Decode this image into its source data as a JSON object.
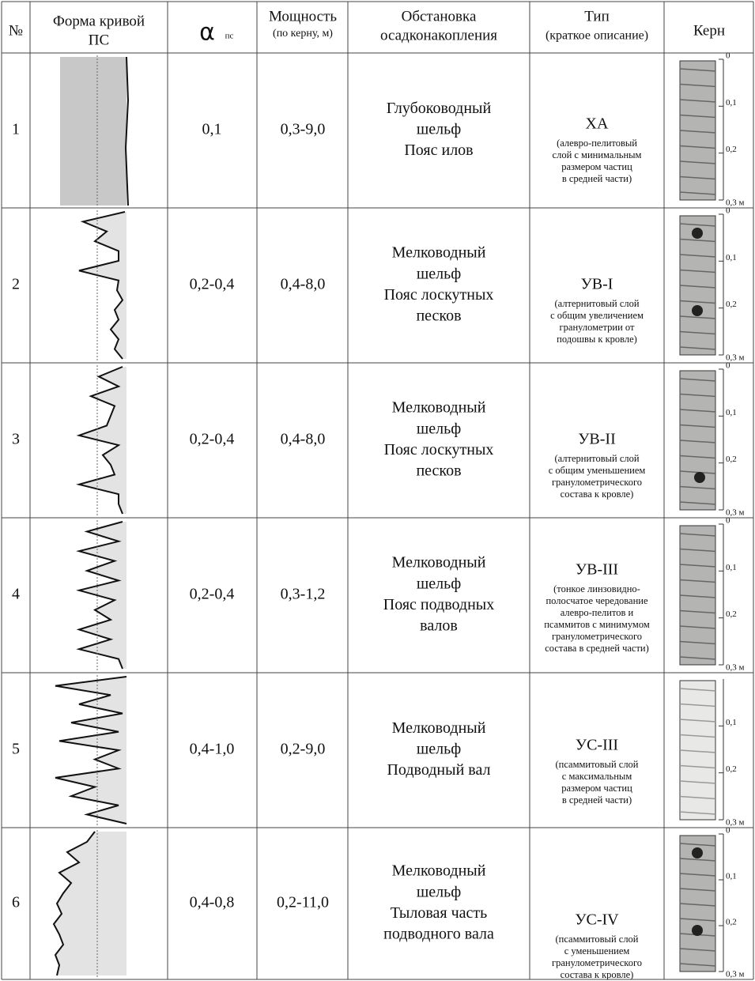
{
  "header": {
    "number": "№",
    "curve": [
      "Форма кривой",
      "ПС"
    ],
    "alpha": "α",
    "alpha_sub": "пс",
    "thickness": "Мощность",
    "thickness_note": "(по керну, м)",
    "environment": [
      "Обстановка",
      "осадконакопления"
    ],
    "type": "Тип",
    "type_note": "(краткое описание)",
    "core": "Керн"
  },
  "rows": [
    {
      "number": "1",
      "alpha": "0,1",
      "thickness": "0,3-9,0",
      "environment": [
        "Глубоководный",
        "шельф",
        "Пояс илов"
      ],
      "type_code": "ХА",
      "type_desc": [
        "(алевро-пелитовый",
        "слой с минимальным",
        "размером частиц",
        "в средней части)"
      ],
      "scale": [
        "0",
        "0,1",
        "0,2",
        "0,3 м"
      ]
    },
    {
      "number": "2",
      "alpha": "0,2-0,4",
      "thickness": "0,4-8,0",
      "environment": [
        "Мелководный",
        "шельф",
        "Пояс лоскутных",
        "песков"
      ],
      "type_code": "УВ-I",
      "type_desc": [
        "(алтернитовый слой",
        "с общим увеличением",
        "гранулометрии от",
        "подошвы к кровле)"
      ],
      "scale": [
        "0",
        "0,1",
        "0,2",
        "0,3 м"
      ]
    },
    {
      "number": "3",
      "alpha": "0,2-0,4",
      "thickness": "0,4-8,0",
      "environment": [
        "Мелководный",
        "шельф",
        "Пояс лоскутных",
        "песков"
      ],
      "type_code": "УВ-II",
      "type_desc": [
        "(алтернитовый слой",
        "с общим уменьшением",
        "гранулометрического",
        "состава к кровле)"
      ],
      "scale": [
        "0",
        "0,1",
        "0,2",
        "0,3 м"
      ]
    },
    {
      "number": "4",
      "alpha": "0,2-0,4",
      "thickness": "0,3-1,2",
      "environment": [
        "Мелководный",
        "шельф",
        "Пояс подводных",
        "валов"
      ],
      "type_code": "УВ-III",
      "type_desc": [
        "(тонкое линзовидно-",
        "полосчатое чередование",
        "алевро-пелитов и",
        "псаммитов с минимумом",
        "гранулометрического",
        "состава в средней части)"
      ],
      "scale": [
        "0",
        "0,1",
        "0,2",
        "0,3 м"
      ]
    },
    {
      "number": "5",
      "alpha": "0,4-1,0",
      "thickness": "0,2-9,0",
      "environment": [
        "Мелководный",
        "шельф",
        "Подводный вал"
      ],
      "type_code": "УС-III",
      "type_desc": [
        "(псаммитовый слой",
        "с максимальным",
        "размером частиц",
        "в средней части)"
      ],
      "scale": [
        "0,1",
        "0,2",
        "0,3 м"
      ]
    },
    {
      "number": "6",
      "alpha": "0,4-0,8",
      "thickness": "0,2-11,0",
      "environment": [
        "Мелководный",
        "шельф",
        "Тыловая часть",
        "подводного вала"
      ],
      "type_code": "УС-IV",
      "type_desc": [
        "(псаммитовый слой",
        "с уменьшением",
        "гранулометрического",
        "состава к кровле)"
      ],
      "scale": [
        "0",
        "0,1",
        "0,2",
        "0,3 м"
      ]
    }
  ]
}
